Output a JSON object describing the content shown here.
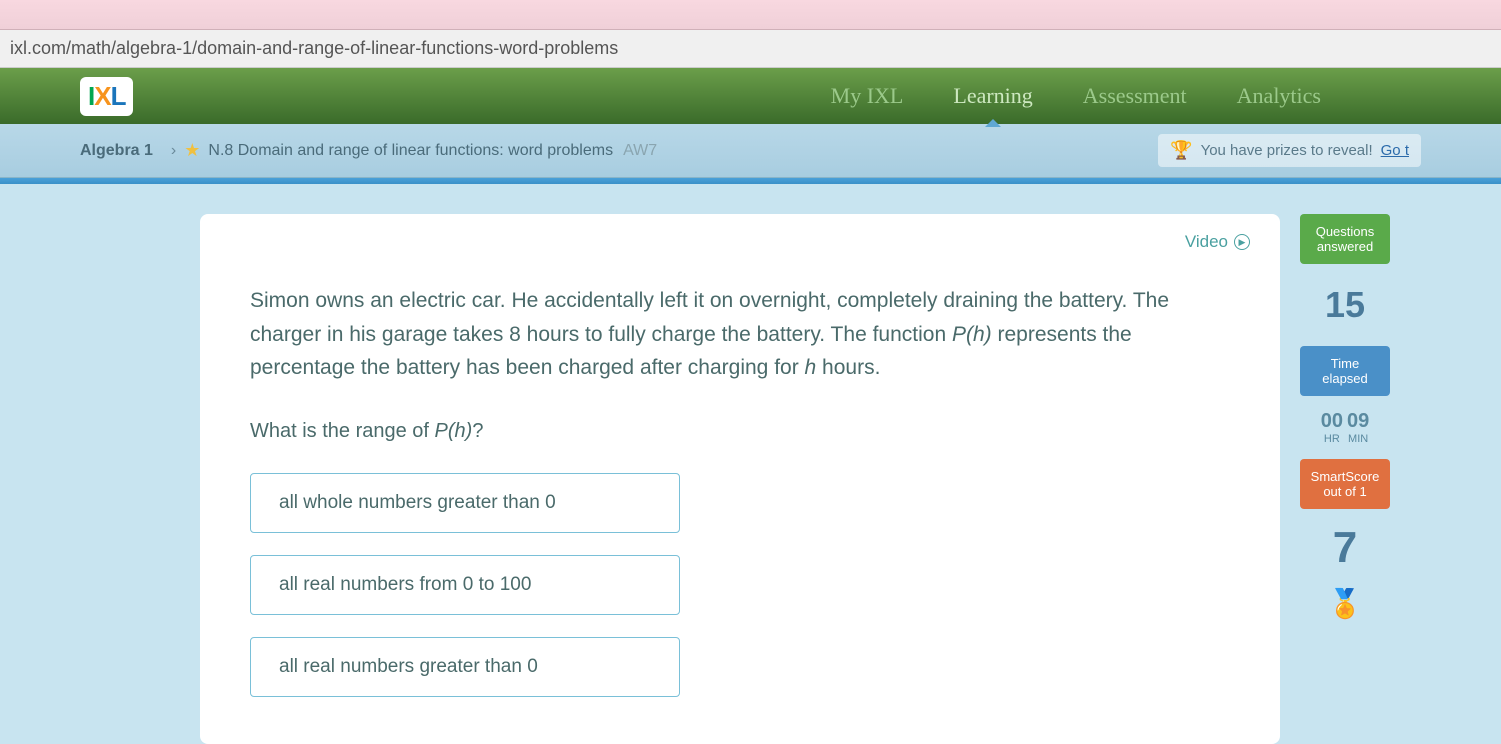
{
  "url": "ixl.com/math/algebra-1/domain-and-range-of-linear-functions-word-problems",
  "nav": {
    "items": [
      "My IXL",
      "Learning",
      "Assessment",
      "Analytics"
    ],
    "active_index": 1
  },
  "breadcrumb": {
    "subject": "Algebra 1",
    "skill_code": "N.8",
    "skill_title": "Domain and range of linear functions: word problems",
    "skill_id": "AW7"
  },
  "prizes": {
    "text": "You have prizes to reveal!",
    "link": "Go t"
  },
  "video_label": "Video",
  "question": {
    "body_before": "Simon owns an electric car. He accidentally left it on overnight, completely draining the battery. The charger in his garage takes 8 hours to fully charge the battery. The function ",
    "func1": "P(h)",
    "body_mid": " represents the percentage the battery has been charged after charging for ",
    "var1": "h",
    "body_after": " hours.",
    "prompt_before": "What is the range of ",
    "prompt_func": "P(h)",
    "prompt_after": "?"
  },
  "options": [
    "all whole numbers greater than 0",
    "all real numbers from 0 to 100",
    "all real numbers greater than 0"
  ],
  "stats": {
    "questions_label": "Questions answered",
    "questions_value": "15",
    "time_label": "Time elapsed",
    "time_hr": "00",
    "time_min": "09",
    "time_hr_label": "HR",
    "time_min_label": "MIN",
    "smart_label": "SmartScore",
    "smart_sub": "out of 1",
    "smart_value": "7"
  }
}
